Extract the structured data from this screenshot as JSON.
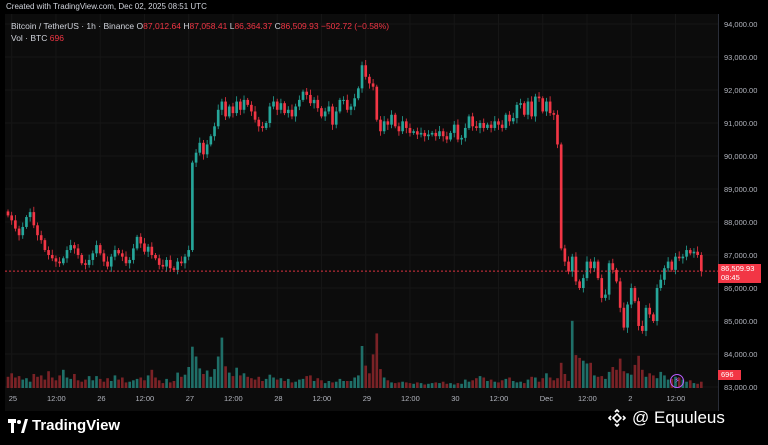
{
  "header": {
    "created_text": "Created with TradingView.com, Dec 02, 2025 08:51 UTC"
  },
  "legend": {
    "symbol": "Bitcoin / TetherUS · 1h · Binance",
    "o_label": "O",
    "o_value": "87,012.64",
    "h_label": "H",
    "h_value": "87,058.41",
    "l_label": "L",
    "l_value": "86,364.37",
    "c_label": "C",
    "c_value": "86,509.93",
    "change": "−502.72 (−0.58%)",
    "vol_label": "Vol · BTC",
    "vol_value": "696"
  },
  "price_tag": {
    "price": "86,509.93",
    "countdown": "08:45"
  },
  "volume_tag": "696",
  "footer": {
    "brand": "TradingView",
    "watermark": "@ Equuleus"
  },
  "colors": {
    "up": "#26a69a",
    "down": "#f23645",
    "vol_up": "#1f6f68",
    "vol_down": "#7a2226",
    "background": "#000000"
  },
  "icons": {
    "bolt": "lightning-icon",
    "logo": "tradingview-logo-icon",
    "watermark_logo": "binance-logo-icon"
  },
  "chart_data": {
    "type": "candlestick",
    "title": "Bitcoin / TetherUS · 1h · Binance",
    "xlabel": "",
    "ylabel": "",
    "ylim": [
      82800,
      94200
    ],
    "y_ticks": [
      "94,000.00",
      "93,000.00",
      "92,000.00",
      "91,000.00",
      "90,000.00",
      "89,000.00",
      "88,000.00",
      "87,000.00",
      "86,000.00",
      "85,000.00",
      "84,000.00",
      "83,000.00"
    ],
    "y_tick_values": [
      94000,
      93000,
      92000,
      91000,
      90000,
      89000,
      88000,
      87000,
      86000,
      85000,
      84000,
      83000
    ],
    "x_ticks": [
      "25",
      "12:00",
      "26",
      "12:00",
      "27",
      "12:00",
      "28",
      "12:00",
      "29",
      "12:00",
      "30",
      "12:00",
      "Dec",
      "12:00",
      "2",
      "12:00"
    ],
    "x_tick_hours": [
      0,
      12,
      24,
      36,
      48,
      60,
      72,
      84,
      96,
      108,
      120,
      132,
      144,
      156,
      168,
      180
    ],
    "first_candle_hour": -1,
    "last_price": 86509.93,
    "series": [
      {
        "name": "price",
        "close": [
          88200,
          88050,
          87800,
          87600,
          87850,
          88150,
          88300,
          87900,
          87600,
          87450,
          87150,
          87000,
          86900,
          86800,
          86750,
          86900,
          87150,
          87300,
          87200,
          87000,
          86750,
          86700,
          86850,
          87050,
          87300,
          87050,
          86800,
          86650,
          86950,
          87150,
          87050,
          86950,
          86750,
          86850,
          87200,
          87550,
          87350,
          87100,
          87250,
          87000,
          86900,
          86700,
          86650,
          86850,
          86600,
          86550,
          86800,
          86750,
          86950,
          87150,
          89800,
          90100,
          90400,
          90050,
          90350,
          90600,
          90900,
          91400,
          91650,
          91200,
          91500,
          91300,
          91650,
          91400,
          91700,
          91550,
          91350,
          91100,
          90900,
          90850,
          91000,
          91500,
          91650,
          91400,
          91600,
          91300,
          91400,
          91200,
          91500,
          91700,
          91950,
          91850,
          91600,
          91700,
          91450,
          91200,
          91350,
          91500,
          90950,
          91350,
          91700,
          91700,
          91400,
          91500,
          91750,
          92050,
          92750,
          92400,
          92200,
          92100,
          91100,
          90750,
          91050,
          90950,
          91250,
          90900,
          90750,
          91050,
          90850,
          90700,
          90750,
          90650,
          90700,
          90600,
          90650,
          90700,
          90600,
          90750,
          90600,
          90500,
          90700,
          90950,
          90500,
          90550,
          90850,
          91200,
          90900,
          90850,
          91000,
          90850,
          90950,
          90850,
          91050,
          90950,
          90850,
          91250,
          91050,
          91150,
          91550,
          91600,
          91250,
          91650,
          91200,
          91800,
          91750,
          91350,
          91650,
          91300,
          91250,
          90350,
          87200,
          86800,
          86500,
          86950,
          86200,
          86000,
          86300,
          86800,
          86600,
          86800,
          86300,
          85700,
          85800,
          86750,
          86550,
          86200,
          85400,
          84800,
          85500,
          86000,
          85600,
          84850,
          84700,
          85400,
          85200,
          85000,
          86000,
          86250,
          86600,
          86800,
          86550,
          86950,
          86900,
          86950,
          87150,
          87050,
          87100,
          87000,
          86509.93
        ]
      },
      {
        "name": "volume",
        "values": [
          1600,
          2100,
          1500,
          1700,
          1200,
          1400,
          900,
          2000,
          1600,
          1800,
          1200,
          2400,
          1500,
          1100,
          1800,
          2600,
          1500,
          1300,
          2000,
          1100,
          900,
          1200,
          1700,
          1100,
          1700,
          1300,
          900,
          1400,
          1000,
          1800,
          1200,
          1500,
          800,
          900,
          1100,
          1300,
          1500,
          1100,
          1800,
          2600,
          1500,
          1100,
          700,
          1300,
          800,
          1000,
          2200,
          1600,
          1900,
          3000,
          5900,
          4500,
          2800,
          2000,
          2500,
          1600,
          2700,
          4500,
          7200,
          3100,
          2200,
          1700,
          2900,
          1800,
          2100,
          1600,
          1400,
          1200,
          1600,
          1000,
          1300,
          1900,
          1500,
          1200,
          1400,
          1000,
          1300,
          800,
          900,
          1200,
          1300,
          1700,
          1800,
          1000,
          1400,
          1100,
          700,
          1000,
          800,
          900,
          1300,
          1000,
          1000,
          1000,
          1500,
          1800,
          6000,
          3200,
          2100,
          4800,
          7800,
          2700,
          1500,
          1100,
          800,
          700,
          800,
          900,
          800,
          700,
          600,
          800,
          700,
          500,
          600,
          700,
          800,
          700,
          900,
          600,
          700,
          500,
          700,
          600,
          1200,
          900,
          1100,
          1400,
          1700,
          1500,
          1000,
          1200,
          900,
          800,
          1100,
          1300,
          1500,
          1000,
          800,
          900,
          700,
          1200,
          1600,
          1500,
          900,
          1400,
          2100,
          1500,
          1100,
          1400,
          3600,
          2000,
          1000,
          9600,
          4700,
          4300,
          3900,
          3500,
          3600,
          1800,
          1600,
          1700,
          1300,
          2300,
          3000,
          2600,
          4200,
          2400,
          2100,
          1900,
          3300,
          4600,
          2600,
          1600,
          2100,
          1800,
          1400,
          2300,
          1800,
          1200,
          1300,
          1600,
          1500,
          1200,
          900,
          1100,
          700,
          600,
          900,
          696
        ]
      }
    ]
  }
}
